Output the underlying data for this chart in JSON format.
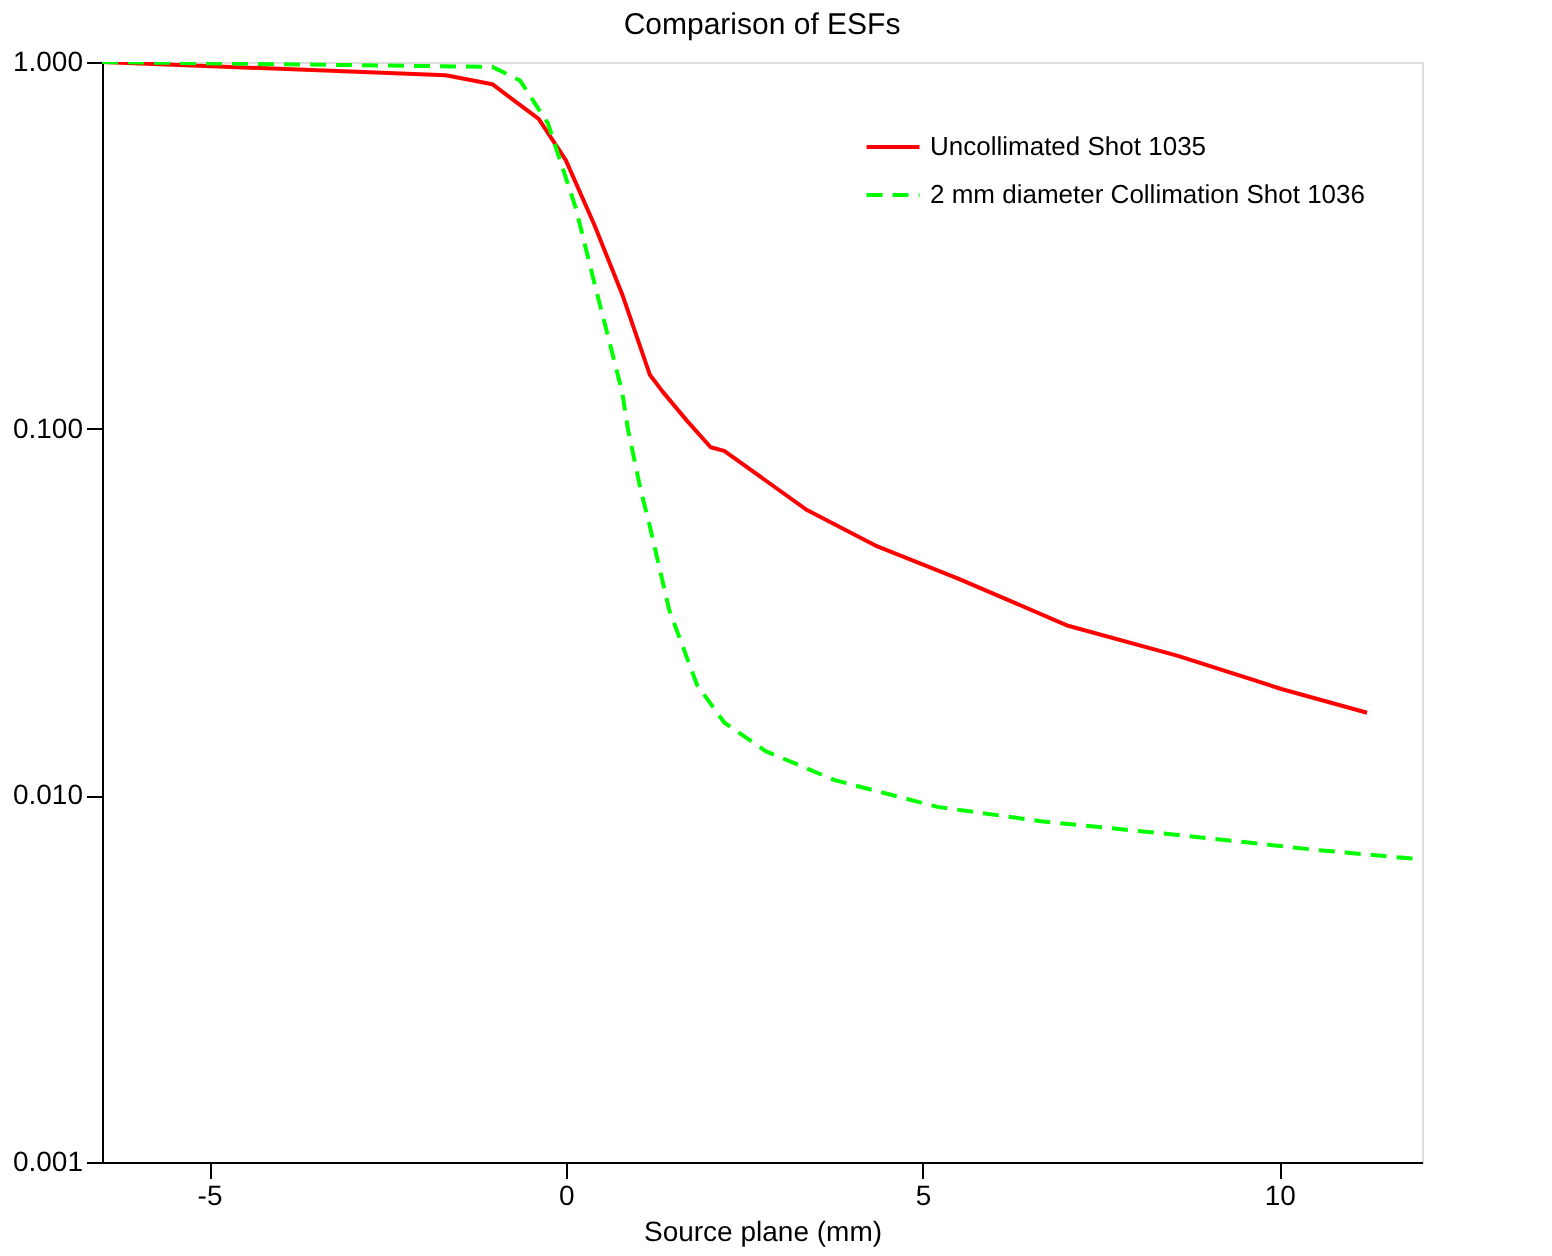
{
  "chart_data": {
    "type": "line",
    "title": "Comparison of ESFs",
    "xlabel": "Source plane (mm)",
    "log": "y",
    "legend": "top right",
    "grid": false,
    "xlim": [
      -6.5,
      12
    ],
    "xticks": [
      -5,
      0,
      5,
      10
    ],
    "ylim": [
      0.001,
      1.0
    ],
    "yticks": [
      {
        "value": 0.001,
        "label": "0.001"
      },
      {
        "value": 0.01,
        "label": "0.010"
      },
      {
        "value": 0.1,
        "label": "0.100"
      },
      {
        "value": 1.0,
        "label": "1.000"
      }
    ],
    "series": [
      {
        "name": "Uncollimated Shot 1035",
        "color": "#ff0000",
        "line_style": "solid",
        "x": [
          -6.5,
          -1.68,
          -1.03,
          -0.38,
          0.0,
          0.4,
          0.8,
          1.18,
          1.36,
          1.7,
          2.03,
          2.22,
          3.38,
          4.34,
          5.5,
          7.04,
          8.58,
          10.03,
          11.23
        ],
        "values": [
          1.0,
          0.92,
          0.87,
          0.7,
          0.54,
          0.36,
          0.23,
          0.14,
          0.126,
          0.105,
          0.089,
          0.087,
          0.06,
          0.048,
          0.039,
          0.029,
          0.024,
          0.0195,
          0.0168
        ]
      },
      {
        "name": "2 mm diameter Collimation Shot 1036",
        "color": "#00ff00",
        "line_style": "dashed",
        "x": [
          -6.5,
          -1.03,
          -0.64,
          -0.25,
          0.14,
          0.4,
          0.79,
          0.87,
          1.05,
          1.17,
          1.45,
          1.84,
          2.22,
          2.8,
          3.77,
          5.21,
          6.66,
          8.58,
          10.51,
          11.95
        ],
        "values": [
          1.0,
          0.97,
          0.89,
          0.68,
          0.4,
          0.25,
          0.126,
          0.1,
          0.068,
          0.055,
          0.032,
          0.02,
          0.0158,
          0.0132,
          0.011,
          0.0093,
          0.0085,
          0.0078,
          0.0071,
          0.0067
        ]
      }
    ]
  }
}
